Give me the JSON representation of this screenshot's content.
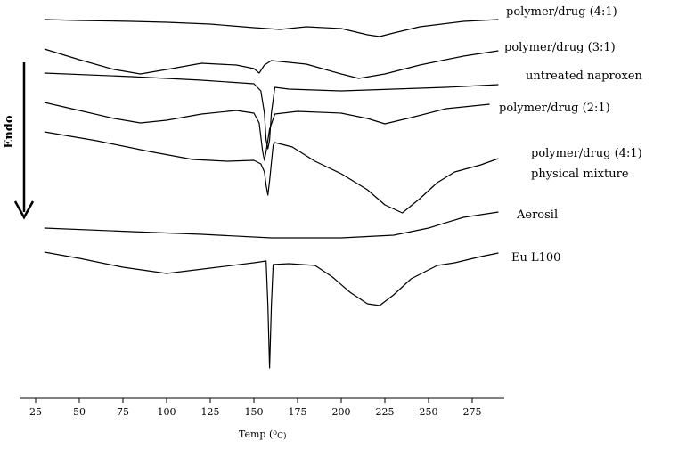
{
  "chart_data": {
    "type": "line",
    "title": "",
    "xlabel_parts": {
      "main": "Temp (",
      "sup": "o",
      "unit": "C)"
    },
    "ylabel": "Endo",
    "xlim": [
      20,
      297
    ],
    "x_ticks": [
      25,
      50,
      75,
      100,
      125,
      150,
      175,
      200,
      225,
      250,
      275
    ],
    "grid": false,
    "series": [
      {
        "label_lines": [
          "polymer/drug (4:1)"
        ],
        "baseline": 22,
        "points": [
          [
            30,
            0
          ],
          [
            50,
            1
          ],
          [
            80,
            2
          ],
          [
            100,
            3
          ],
          [
            125,
            5
          ],
          [
            150,
            9
          ],
          [
            165,
            11
          ],
          [
            180,
            8
          ],
          [
            200,
            10
          ],
          [
            215,
            17
          ],
          [
            222,
            19
          ],
          [
            230,
            15
          ],
          [
            245,
            8
          ],
          [
            270,
            2
          ],
          [
            290,
            0
          ]
        ]
      },
      {
        "label_lines": [
          "polymer/drug (3:1)"
        ],
        "baseline": 55,
        "points": [
          [
            30,
            0
          ],
          [
            50,
            12
          ],
          [
            70,
            23
          ],
          [
            85,
            28
          ],
          [
            100,
            23
          ],
          [
            120,
            16
          ],
          [
            140,
            18
          ],
          [
            150,
            22
          ],
          [
            153,
            27
          ],
          [
            156,
            18
          ],
          [
            160,
            13
          ],
          [
            180,
            17
          ],
          [
            200,
            28
          ],
          [
            210,
            33
          ],
          [
            225,
            28
          ],
          [
            245,
            18
          ],
          [
            270,
            8
          ],
          [
            290,
            2
          ]
        ]
      },
      {
        "label_lines": [
          "untreated naproxen"
        ],
        "baseline": 82,
        "points": [
          [
            30,
            0
          ],
          [
            80,
            4
          ],
          [
            120,
            8
          ],
          [
            150,
            12
          ],
          [
            154,
            20
          ],
          [
            156,
            45
          ],
          [
            157,
            75
          ],
          [
            158,
            85
          ],
          [
            159,
            75
          ],
          [
            160,
            45
          ],
          [
            162,
            16
          ],
          [
            170,
            18
          ],
          [
            200,
            20
          ],
          [
            260,
            16
          ],
          [
            290,
            13
          ]
        ]
      },
      {
        "label_lines": [
          "polymer/drug (2:1)"
        ],
        "baseline": 115,
        "points": [
          [
            30,
            0
          ],
          [
            50,
            9
          ],
          [
            70,
            18
          ],
          [
            85,
            23
          ],
          [
            100,
            20
          ],
          [
            120,
            13
          ],
          [
            140,
            9
          ],
          [
            150,
            12
          ],
          [
            153,
            23
          ],
          [
            155,
            55
          ],
          [
            156,
            65
          ],
          [
            157,
            55
          ],
          [
            159,
            30
          ],
          [
            162,
            13
          ],
          [
            175,
            10
          ],
          [
            200,
            12
          ],
          [
            215,
            18
          ],
          [
            225,
            24
          ],
          [
            240,
            17
          ],
          [
            260,
            7
          ],
          [
            285,
            2
          ]
        ]
      },
      {
        "label_lines": [
          "polymer/drug (4:1)",
          "physical mixture"
        ],
        "baseline": 148,
        "points": [
          [
            30,
            0
          ],
          [
            60,
            10
          ],
          [
            90,
            22
          ],
          [
            115,
            31
          ],
          [
            135,
            33
          ],
          [
            150,
            32
          ],
          [
            154,
            36
          ],
          [
            156,
            45
          ],
          [
            157,
            60
          ],
          [
            158,
            71
          ],
          [
            159,
            55
          ],
          [
            160,
            35
          ],
          [
            161,
            15
          ],
          [
            162,
            12
          ],
          [
            172,
            17
          ],
          [
            185,
            33
          ],
          [
            200,
            47
          ],
          [
            215,
            65
          ],
          [
            225,
            82
          ],
          [
            235,
            91
          ],
          [
            245,
            75
          ],
          [
            255,
            57
          ],
          [
            265,
            45
          ],
          [
            280,
            37
          ],
          [
            290,
            30
          ]
        ]
      },
      {
        "label_lines": [
          "Aerosil"
        ],
        "baseline": 256,
        "points": [
          [
            30,
            0
          ],
          [
            80,
            4
          ],
          [
            120,
            7
          ],
          [
            160,
            11
          ],
          [
            200,
            11
          ],
          [
            230,
            8
          ],
          [
            250,
            0
          ],
          [
            270,
            -12
          ],
          [
            290,
            -18
          ]
        ]
      },
      {
        "label_lines": [
          "Eu L100"
        ],
        "baseline": 283,
        "points": [
          [
            30,
            0
          ],
          [
            50,
            7
          ],
          [
            75,
            17
          ],
          [
            100,
            24
          ],
          [
            125,
            18
          ],
          [
            150,
            12
          ],
          [
            157,
            10
          ],
          [
            158,
            60
          ],
          [
            159,
            130
          ],
          [
            160,
            60
          ],
          [
            161,
            14
          ],
          [
            170,
            13
          ],
          [
            185,
            15
          ],
          [
            195,
            28
          ],
          [
            205,
            45
          ],
          [
            215,
            58
          ],
          [
            222,
            60
          ],
          [
            230,
            48
          ],
          [
            240,
            30
          ],
          [
            255,
            15
          ],
          [
            265,
            12
          ],
          [
            280,
            5
          ],
          [
            290,
            1
          ]
        ]
      }
    ]
  }
}
